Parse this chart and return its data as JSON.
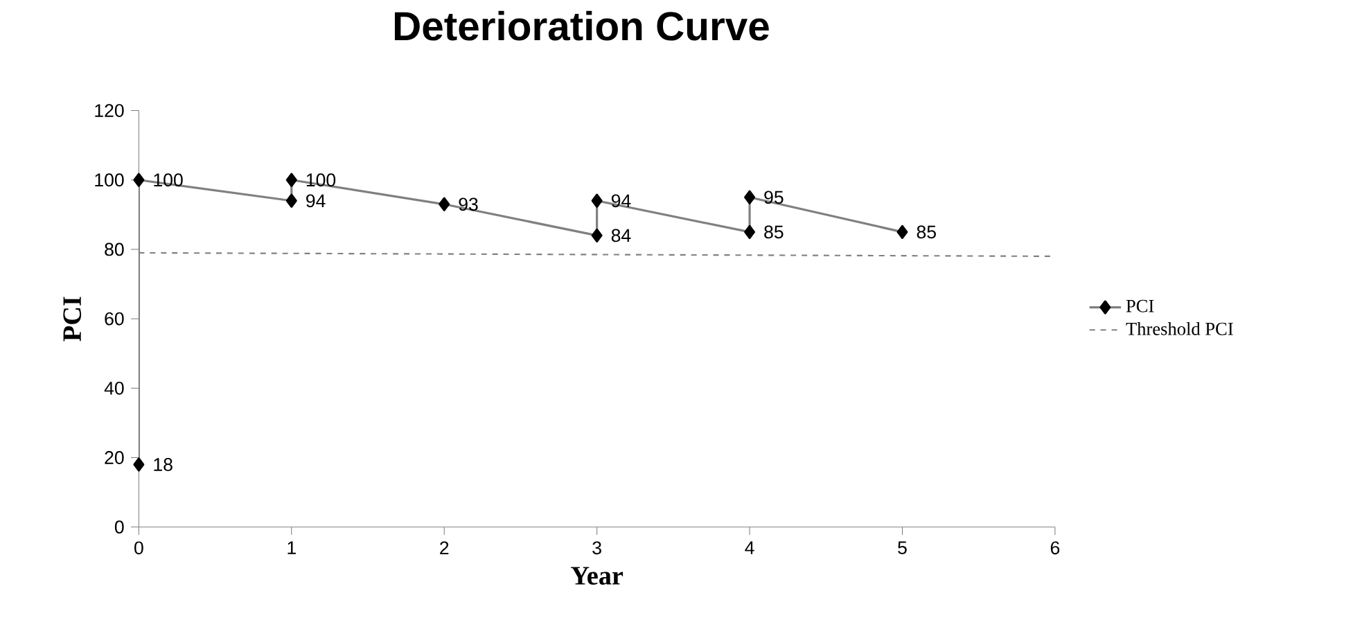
{
  "chart_data": {
    "type": "line",
    "title": "Deterioration Curve",
    "xlabel": "Year",
    "ylabel": "PCI",
    "xlim": [
      0,
      6
    ],
    "xticks": [
      0,
      1,
      2,
      3,
      4,
      5,
      6
    ],
    "ylim": [
      0,
      120
    ],
    "yticks": [
      0,
      20,
      40,
      60,
      80,
      100,
      120
    ],
    "legend": "right",
    "grid": false,
    "series": [
      {
        "name": "PCI",
        "color": "#808080",
        "x": [
          0,
          0,
          1,
          1,
          2,
          3,
          3,
          4,
          4,
          5
        ],
        "values": [
          18,
          100,
          94,
          100,
          93,
          84,
          94,
          85,
          95,
          85
        ],
        "value_labels": [
          "18",
          "100",
          "94",
          "100",
          "93",
          "84",
          "94",
          "85",
          "95",
          "85"
        ],
        "marker": "diamond",
        "line_style": "solid"
      },
      {
        "name": "Threshold PCI",
        "color": "#808080",
        "x": [
          0,
          6
        ],
        "values": [
          79,
          78
        ],
        "marker": "none",
        "line_style": "dashed"
      }
    ]
  }
}
